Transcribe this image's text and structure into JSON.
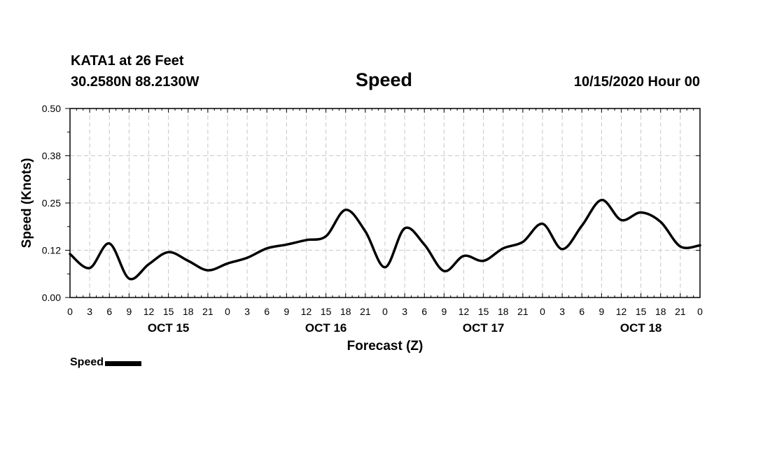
{
  "header": {
    "station": "KATA1 at 26 Feet",
    "coords": "30.2580N 88.2130W",
    "title": "Speed",
    "datetime": "10/15/2020 Hour 00"
  },
  "legend": {
    "label": "Speed"
  },
  "chart_data": {
    "type": "line",
    "title": "Speed",
    "xlabel": "Forecast (Z)",
    "ylabel": "Speed (Knots)",
    "ylim": [
      0,
      0.5
    ],
    "yticks": [
      "0.00",
      "0.12",
      "0.25",
      "0.38",
      "0.50"
    ],
    "xticks": [
      "0",
      "3",
      "6",
      "9",
      "12",
      "15",
      "18",
      "21",
      "0",
      "3",
      "6",
      "9",
      "12",
      "15",
      "18",
      "21",
      "0",
      "3",
      "6",
      "9",
      "12",
      "15",
      "18",
      "21",
      "0",
      "3",
      "6",
      "9",
      "12",
      "15",
      "18",
      "21",
      "0"
    ],
    "date_labels": [
      {
        "label": "OCT 15",
        "hour": 15
      },
      {
        "label": "OCT 16",
        "hour": 39
      },
      {
        "label": "OCT 17",
        "hour": 63
      },
      {
        "label": "OCT 18",
        "hour": 87
      }
    ],
    "grid": true,
    "legend_position": "bottom-left",
    "series": [
      {
        "name": "Speed",
        "color": "#000000",
        "x": [
          0,
          3,
          6,
          9,
          12,
          15,
          18,
          21,
          24,
          27,
          30,
          33,
          36,
          39,
          42,
          45,
          48,
          51,
          54,
          57,
          60,
          63,
          66,
          69,
          72,
          75,
          78,
          81,
          84,
          87,
          90,
          93,
          96
        ],
        "values": [
          0.115,
          0.078,
          0.143,
          0.05,
          0.088,
          0.12,
          0.097,
          0.072,
          0.09,
          0.105,
          0.13,
          0.14,
          0.152,
          0.162,
          0.232,
          0.175,
          0.08,
          0.183,
          0.14,
          0.07,
          0.11,
          0.097,
          0.13,
          0.147,
          0.195,
          0.128,
          0.19,
          0.258,
          0.205,
          0.225,
          0.2,
          0.135,
          0.138
        ]
      }
    ]
  }
}
